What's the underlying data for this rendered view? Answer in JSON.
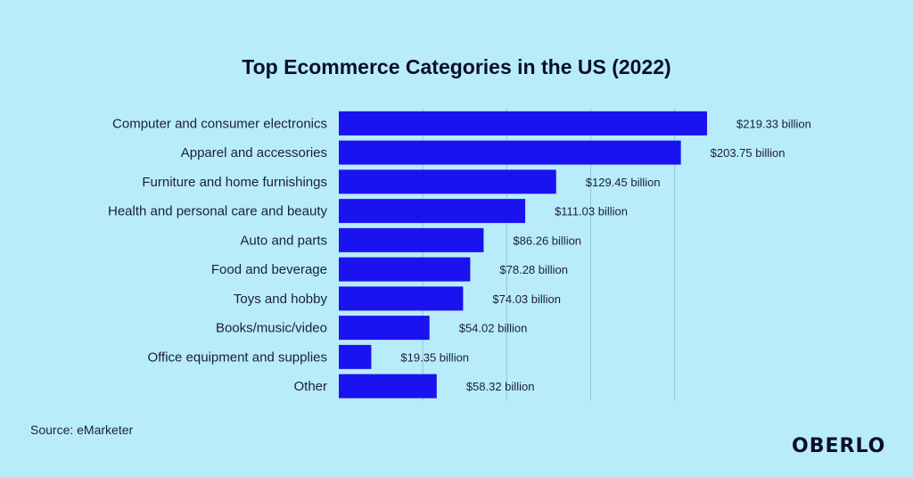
{
  "colors": {
    "background": "#b9ecfb",
    "bar": "#1b12f0",
    "text": "#1a1f3a",
    "grid": "#8fc6d6"
  },
  "chart_data": {
    "type": "bar",
    "orientation": "horizontal",
    "title": "Top Ecommerce Categories in the US (2022)",
    "categories": [
      "Computer and consumer electronics",
      "Apparel and accessories",
      "Furniture and home furnishings",
      "Health and personal care and beauty",
      "Auto and parts",
      "Food and beverage",
      "Toys and hobby",
      "Books/music/video",
      "Office equipment and supplies",
      "Other"
    ],
    "values": [
      219.33,
      203.75,
      129.45,
      111.03,
      86.26,
      78.28,
      74.03,
      54.02,
      19.35,
      58.32
    ],
    "value_labels": [
      "$219.33 billion",
      "$203.75 billion",
      "$129.45 billion",
      "$111.03 billion",
      "$86.26 billion",
      "$78.28 billion",
      "$74.03 billion",
      "$54.02 billion",
      "$19.35 billion",
      "$58.32 billion"
    ],
    "xlim": [
      0,
      219.33
    ],
    "grid": true,
    "legend": "none"
  },
  "footer": {
    "source": "Source: eMarketer",
    "brand": "OBERLO"
  }
}
